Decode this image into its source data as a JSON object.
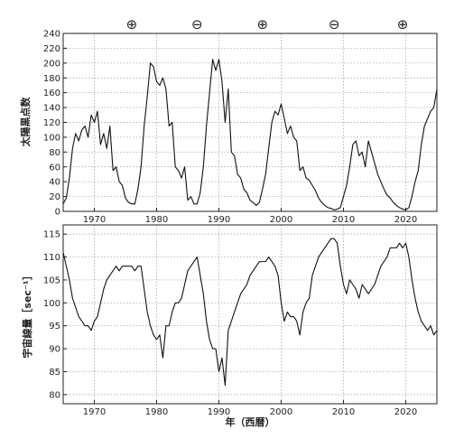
{
  "chart_data": [
    {
      "type": "line",
      "ylabel": "太陽黒点数",
      "xlim": [
        1965,
        2025
      ],
      "ylim": [
        0,
        240
      ],
      "xticks": [
        1970,
        1980,
        1990,
        2000,
        2010,
        2020
      ],
      "yticks": [
        0,
        20,
        40,
        60,
        80,
        100,
        120,
        140,
        160,
        180,
        200,
        220,
        240
      ],
      "grid": true,
      "line_color": "#111111",
      "polarity_markers": [
        {
          "year": 1976,
          "symbol": "⊕"
        },
        {
          "year": 1986.5,
          "symbol": "⊖"
        },
        {
          "year": 1997,
          "symbol": "⊕"
        },
        {
          "year": 2008.5,
          "symbol": "⊖"
        },
        {
          "year": 2019.5,
          "symbol": "⊕"
        }
      ],
      "x": [
        1965.0,
        1965.5,
        1966.0,
        1966.5,
        1967.0,
        1967.5,
        1968.0,
        1968.5,
        1969.0,
        1969.5,
        1970.0,
        1970.5,
        1971.0,
        1971.5,
        1972.0,
        1972.5,
        1973.0,
        1973.5,
        1974.0,
        1974.5,
        1975.0,
        1975.5,
        1976.0,
        1976.5,
        1977.0,
        1977.5,
        1978.0,
        1978.5,
        1979.0,
        1979.5,
        1980.0,
        1980.5,
        1981.0,
        1981.5,
        1982.0,
        1982.5,
        1983.0,
        1983.5,
        1984.0,
        1984.5,
        1985.0,
        1985.5,
        1986.0,
        1986.5,
        1987.0,
        1987.5,
        1988.0,
        1988.5,
        1989.0,
        1989.5,
        1990.0,
        1990.5,
        1991.0,
        1991.5,
        1992.0,
        1992.5,
        1993.0,
        1993.5,
        1994.0,
        1994.5,
        1995.0,
        1995.5,
        1996.0,
        1996.5,
        1997.0,
        1997.5,
        1998.0,
        1998.5,
        1999.0,
        1999.5,
        2000.0,
        2000.5,
        2001.0,
        2001.5,
        2002.0,
        2002.5,
        2003.0,
        2003.5,
        2004.0,
        2004.5,
        2005.0,
        2005.5,
        2006.0,
        2006.5,
        2007.0,
        2007.5,
        2008.0,
        2008.5,
        2009.0,
        2009.5,
        2010.0,
        2010.5,
        2011.0,
        2011.5,
        2012.0,
        2012.5,
        2013.0,
        2013.5,
        2014.0,
        2014.5,
        2015.0,
        2015.5,
        2016.0,
        2016.5,
        2017.0,
        2017.5,
        2018.0,
        2018.5,
        2019.0,
        2019.5,
        2020.0,
        2020.5,
        2021.0,
        2021.5,
        2022.0,
        2022.5,
        2023.0,
        2023.5,
        2024.0,
        2024.5,
        2025.0
      ],
      "y": [
        10,
        18,
        45,
        85,
        105,
        95,
        110,
        115,
        100,
        130,
        120,
        135,
        90,
        105,
        85,
        115,
        55,
        60,
        40,
        35,
        18,
        12,
        10,
        10,
        30,
        60,
        115,
        155,
        200,
        195,
        175,
        170,
        180,
        165,
        115,
        120,
        60,
        55,
        45,
        60,
        15,
        20,
        10,
        10,
        25,
        60,
        115,
        160,
        205,
        190,
        205,
        175,
        120,
        165,
        80,
        75,
        50,
        45,
        30,
        25,
        15,
        12,
        8,
        12,
        30,
        50,
        85,
        120,
        135,
        130,
        145,
        125,
        105,
        115,
        100,
        95,
        55,
        60,
        45,
        42,
        35,
        28,
        18,
        12,
        8,
        5,
        4,
        2,
        3,
        5,
        20,
        35,
        60,
        90,
        95,
        75,
        80,
        60,
        95,
        80,
        65,
        50,
        40,
        30,
        22,
        18,
        12,
        8,
        5,
        3,
        2,
        5,
        20,
        40,
        55,
        90,
        115,
        125,
        135,
        140,
        165
      ]
    },
    {
      "type": "line",
      "xlabel": "年（西暦）",
      "ylabel": "宇宙線量［sec⁻¹］",
      "xlim": [
        1965,
        2025
      ],
      "ylim": [
        78,
        117
      ],
      "xticks": [
        1970,
        1980,
        1990,
        2000,
        2010,
        2020
      ],
      "yticks": [
        80,
        85,
        90,
        95,
        100,
        105,
        110,
        115
      ],
      "grid": true,
      "line_color": "#111111",
      "x": [
        1965.0,
        1965.5,
        1966.0,
        1966.5,
        1967.0,
        1967.5,
        1968.0,
        1968.5,
        1969.0,
        1969.5,
        1970.0,
        1970.5,
        1971.0,
        1971.5,
        1972.0,
        1972.5,
        1973.0,
        1973.5,
        1974.0,
        1974.5,
        1975.0,
        1975.5,
        1976.0,
        1976.5,
        1977.0,
        1977.5,
        1978.0,
        1978.5,
        1979.0,
        1979.5,
        1980.0,
        1980.5,
        1981.0,
        1981.5,
        1982.0,
        1982.5,
        1983.0,
        1983.5,
        1984.0,
        1984.5,
        1985.0,
        1985.5,
        1986.0,
        1986.5,
        1987.0,
        1987.5,
        1988.0,
        1988.5,
        1989.0,
        1989.5,
        1990.0,
        1990.5,
        1991.0,
        1991.5,
        1992.0,
        1992.5,
        1993.0,
        1993.5,
        1994.0,
        1994.5,
        1995.0,
        1995.5,
        1996.0,
        1996.5,
        1997.0,
        1997.5,
        1998.0,
        1998.5,
        1999.0,
        1999.5,
        2000.0,
        2000.5,
        2001.0,
        2001.5,
        2002.0,
        2002.5,
        2003.0,
        2003.5,
        2004.0,
        2004.5,
        2005.0,
        2005.5,
        2006.0,
        2006.5,
        2007.0,
        2007.5,
        2008.0,
        2008.5,
        2009.0,
        2009.5,
        2010.0,
        2010.5,
        2011.0,
        2011.5,
        2012.0,
        2012.5,
        2013.0,
        2013.5,
        2014.0,
        2014.5,
        2015.0,
        2015.5,
        2016.0,
        2016.5,
        2017.0,
        2017.5,
        2018.0,
        2018.5,
        2019.0,
        2019.5,
        2020.0,
        2020.5,
        2021.0,
        2021.5,
        2022.0,
        2022.5,
        2023.0,
        2023.5,
        2024.0,
        2024.5,
        2025.0
      ],
      "y": [
        111,
        108,
        105,
        101,
        99,
        97,
        96,
        95,
        95,
        94,
        96,
        97,
        100,
        103,
        105,
        106,
        107,
        108,
        107,
        108,
        108,
        108,
        108,
        107,
        108,
        108,
        103,
        98,
        95,
        93,
        92,
        93,
        88,
        95,
        95,
        98,
        100,
        100,
        101,
        104,
        107,
        108,
        109,
        110,
        106,
        102,
        96,
        92,
        90,
        90,
        85,
        88,
        82,
        94,
        96,
        98,
        100,
        102,
        103,
        104,
        106,
        107,
        108,
        109,
        109,
        109,
        110,
        109,
        108,
        106,
        100,
        96,
        98,
        97,
        97,
        96,
        93,
        98,
        100,
        101,
        106,
        108,
        110,
        111,
        112,
        113,
        114,
        114,
        113,
        108,
        104,
        102,
        105,
        104,
        103,
        101,
        104,
        103,
        102,
        103,
        104,
        106,
        108,
        109,
        110,
        112,
        112,
        112,
        113,
        112,
        113,
        110,
        105,
        101,
        98,
        96,
        95,
        94,
        95,
        93,
        94
      ]
    }
  ]
}
